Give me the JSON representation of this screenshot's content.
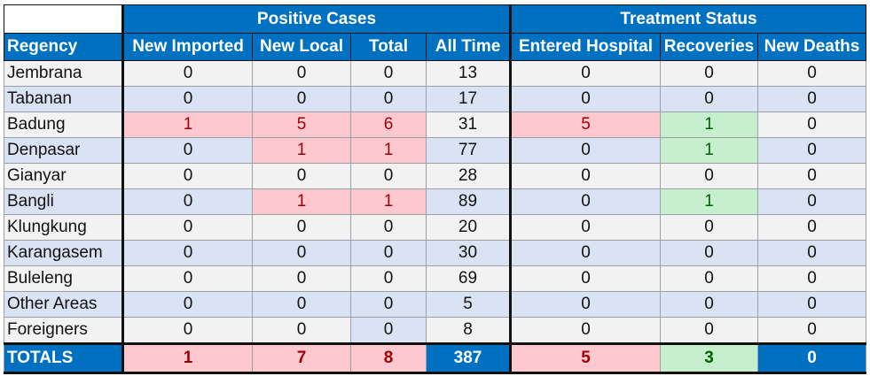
{
  "headers": {
    "group_positive": "Positive Cases",
    "group_treatment": "Treatment Status",
    "columns": [
      "Regency",
      "New Imported",
      "New Local",
      "Total",
      "All Time",
      "Entered Hospital",
      "Recoveries",
      "New Deaths"
    ]
  },
  "rows": [
    {
      "regency": "Jembrana",
      "new_imported": "0",
      "new_local": "0",
      "total": "0",
      "all_time": "13",
      "entered_hospital": "0",
      "recoveries": "0",
      "new_deaths": "0"
    },
    {
      "regency": "Tabanan",
      "new_imported": "0",
      "new_local": "0",
      "total": "0",
      "all_time": "17",
      "entered_hospital": "0",
      "recoveries": "0",
      "new_deaths": "0"
    },
    {
      "regency": "Badung",
      "new_imported": "1",
      "new_local": "5",
      "total": "6",
      "all_time": "31",
      "entered_hospital": "5",
      "recoveries": "1",
      "new_deaths": "0"
    },
    {
      "regency": "Denpasar",
      "new_imported": "0",
      "new_local": "1",
      "total": "1",
      "all_time": "77",
      "entered_hospital": "0",
      "recoveries": "1",
      "new_deaths": "0"
    },
    {
      "regency": "Gianyar",
      "new_imported": "0",
      "new_local": "0",
      "total": "0",
      "all_time": "28",
      "entered_hospital": "0",
      "recoveries": "0",
      "new_deaths": "0"
    },
    {
      "regency": "Bangli",
      "new_imported": "0",
      "new_local": "1",
      "total": "1",
      "all_time": "89",
      "entered_hospital": "0",
      "recoveries": "1",
      "new_deaths": "0"
    },
    {
      "regency": "Klungkung",
      "new_imported": "0",
      "new_local": "0",
      "total": "0",
      "all_time": "20",
      "entered_hospital": "0",
      "recoveries": "0",
      "new_deaths": "0"
    },
    {
      "regency": "Karangasem",
      "new_imported": "0",
      "new_local": "0",
      "total": "0",
      "all_time": "30",
      "entered_hospital": "0",
      "recoveries": "0",
      "new_deaths": "0"
    },
    {
      "regency": "Buleleng",
      "new_imported": "0",
      "new_local": "0",
      "total": "0",
      "all_time": "69",
      "entered_hospital": "0",
      "recoveries": "0",
      "new_deaths": "0"
    },
    {
      "regency": "Other Areas",
      "new_imported": "0",
      "new_local": "0",
      "total": "0",
      "all_time": "5",
      "entered_hospital": "0",
      "recoveries": "0",
      "new_deaths": "0"
    },
    {
      "regency": "Foreigners",
      "new_imported": "0",
      "new_local": "0",
      "total": "0",
      "all_time": "8",
      "entered_hospital": "0",
      "recoveries": "0",
      "new_deaths": "0"
    }
  ],
  "totals": {
    "label": "TOTALS",
    "new_imported": "1",
    "new_local": "7",
    "total": "8",
    "all_time": "387",
    "entered_hospital": "5",
    "recoveries": "3",
    "new_deaths": "0"
  },
  "colors": {
    "header_blue": "#0070c0",
    "positive_bg": "#ffc7ce",
    "positive_text": "#9c0006",
    "recovery_bg": "#c6efce",
    "recovery_text": "#006100",
    "band_blue": "#dae3f3",
    "band_gray": "#f2f2f2"
  }
}
